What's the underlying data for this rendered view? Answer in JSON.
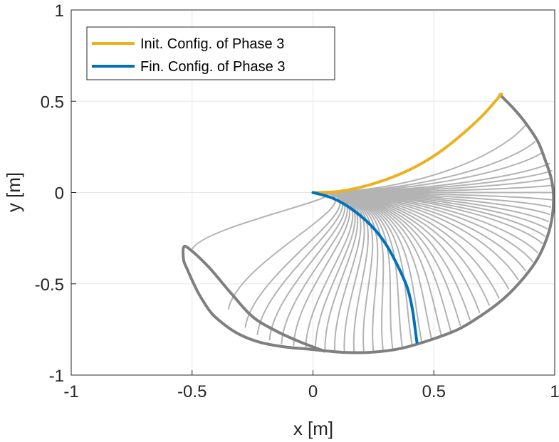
{
  "chart_data": {
    "type": "line",
    "xlabel": "x [m]",
    "ylabel": "y [m]",
    "xlim": [
      -1,
      1
    ],
    "ylim": [
      -1,
      1
    ],
    "x_ticks": [
      -1,
      -0.5,
      0,
      0.5,
      1
    ],
    "y_ticks": [
      -1,
      -0.5,
      0,
      0.5,
      1
    ],
    "x_tick_labels": [
      "-1",
      "-0.5",
      "0",
      "0.5",
      "1"
    ],
    "y_tick_labels": [
      "-1",
      "-0.5",
      "0",
      "0.5",
      "1"
    ],
    "grid": true,
    "legend_position": "top-left",
    "series": [
      {
        "name": "Init. Config. of Phase 3",
        "color": "#EDB120",
        "x": [
          0,
          0.1,
          0.2,
          0.3,
          0.4,
          0.5,
          0.6,
          0.7,
          0.78
        ],
        "y": [
          0,
          0.005,
          0.03,
          0.07,
          0.125,
          0.2,
          0.3,
          0.42,
          0.54
        ]
      },
      {
        "name": "Fin. Config. of Phase 3",
        "color": "#0072BD",
        "x": [
          0,
          0.08,
          0.16,
          0.24,
          0.3,
          0.35,
          0.39,
          0.41,
          0.42,
          0.43
        ],
        "y": [
          0,
          -0.03,
          -0.09,
          -0.18,
          -0.28,
          -0.4,
          -0.52,
          -0.63,
          -0.72,
          -0.82
        ]
      }
    ],
    "tip_trajectory": {
      "color": "#7F7F7F",
      "x": [
        0.77,
        0.83,
        0.88,
        0.93,
        0.96,
        0.985,
        0.995,
        0.99,
        0.97,
        0.93,
        0.87,
        0.79,
        0.7,
        0.6,
        0.48,
        0.36,
        0.24,
        0.12,
        0.0,
        -0.12,
        -0.22,
        -0.3,
        -0.36,
        -0.42,
        -0.47,
        -0.5,
        -0.52,
        -0.535,
        -0.535,
        -0.51,
        -0.43,
        -0.34,
        -0.25,
        -0.15,
        -0.05,
        0.05
      ],
      "y": [
        0.54,
        0.46,
        0.38,
        0.28,
        0.18,
        0.08,
        -0.02,
        -0.13,
        -0.24,
        -0.36,
        -0.47,
        -0.58,
        -0.67,
        -0.75,
        -0.81,
        -0.855,
        -0.875,
        -0.875,
        -0.86,
        -0.845,
        -0.82,
        -0.78,
        -0.73,
        -0.66,
        -0.56,
        -0.48,
        -0.42,
        -0.37,
        -0.3,
        -0.31,
        -0.41,
        -0.55,
        -0.68,
        -0.76,
        -0.82,
        -0.87
      ]
    },
    "intermediate_configs": {
      "color": "#B3B3B3",
      "tips": [
        [
          0.88,
          0.37
        ],
        [
          0.92,
          0.28
        ],
        [
          0.95,
          0.22
        ],
        [
          0.98,
          0.16
        ],
        [
          0.99,
          0.12
        ],
        [
          0.99,
          0.08
        ],
        [
          0.995,
          0.04
        ],
        [
          0.995,
          0.0
        ],
        [
          0.99,
          -0.04
        ],
        [
          0.985,
          -0.08
        ],
        [
          0.98,
          -0.12
        ],
        [
          0.975,
          -0.16
        ],
        [
          0.97,
          -0.2
        ],
        [
          0.96,
          -0.24
        ],
        [
          0.95,
          -0.28
        ],
        [
          0.93,
          -0.33
        ],
        [
          0.91,
          -0.38
        ],
        [
          0.88,
          -0.43
        ],
        [
          0.85,
          -0.48
        ],
        [
          0.81,
          -0.53
        ],
        [
          0.77,
          -0.58
        ],
        [
          0.73,
          -0.62
        ],
        [
          0.69,
          -0.66
        ],
        [
          0.65,
          -0.7
        ],
        [
          0.61,
          -0.73
        ],
        [
          0.57,
          -0.76
        ],
        [
          0.53,
          -0.78
        ],
        [
          0.49,
          -0.8
        ],
        [
          0.45,
          -0.82
        ],
        [
          0.41,
          -0.835
        ],
        [
          0.37,
          -0.85
        ],
        [
          0.33,
          -0.86
        ],
        [
          0.29,
          -0.865
        ],
        [
          0.25,
          -0.87
        ],
        [
          0.21,
          -0.87
        ],
        [
          0.17,
          -0.87
        ],
        [
          0.13,
          -0.87
        ],
        [
          0.09,
          -0.865
        ],
        [
          0.05,
          -0.86
        ],
        [
          0.01,
          -0.86
        ],
        [
          -0.03,
          -0.855
        ],
        [
          -0.08,
          -0.84
        ],
        [
          -0.13,
          -0.83
        ],
        [
          -0.18,
          -0.81
        ],
        [
          -0.23,
          -0.78
        ],
        [
          -0.28,
          -0.74
        ],
        [
          -0.35,
          -0.64
        ],
        [
          -0.5,
          -0.31
        ]
      ]
    }
  }
}
